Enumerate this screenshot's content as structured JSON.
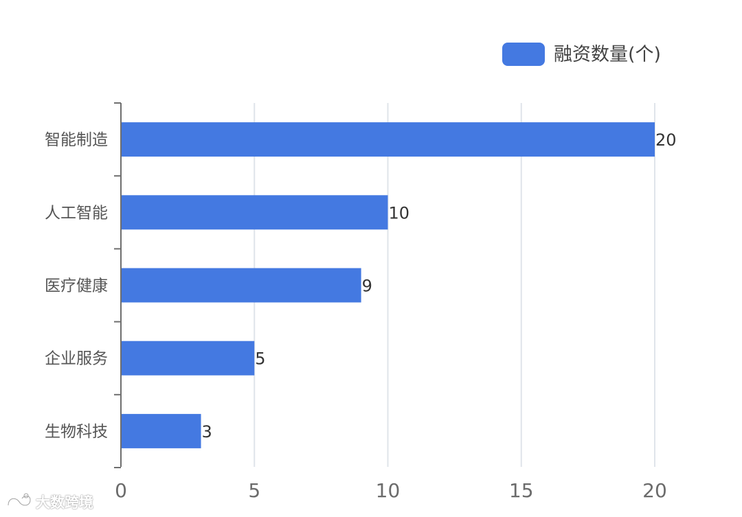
{
  "chart_data": {
    "type": "bar",
    "orientation": "horizontal",
    "categories": [
      "智能制造",
      "人工智能",
      "医疗健康",
      "企业服务",
      "生物科技"
    ],
    "series": [
      {
        "name": "融资数量(个)",
        "values": [
          20,
          10,
          9,
          5,
          3
        ]
      }
    ],
    "data_labels": [
      "20",
      "10",
      "9",
      "5",
      "3"
    ],
    "x_ticks": [
      "0",
      "5",
      "10",
      "15",
      "20"
    ],
    "xlim": [
      0,
      20
    ],
    "grid": true,
    "legend_position": "top-right",
    "bar_color": "#4479e1",
    "grid_color": "#dfe4ea",
    "axis_color": "#6e6e6e"
  },
  "watermark": {
    "text": "大数跨境",
    "icon": "infinity-logo-icon"
  }
}
